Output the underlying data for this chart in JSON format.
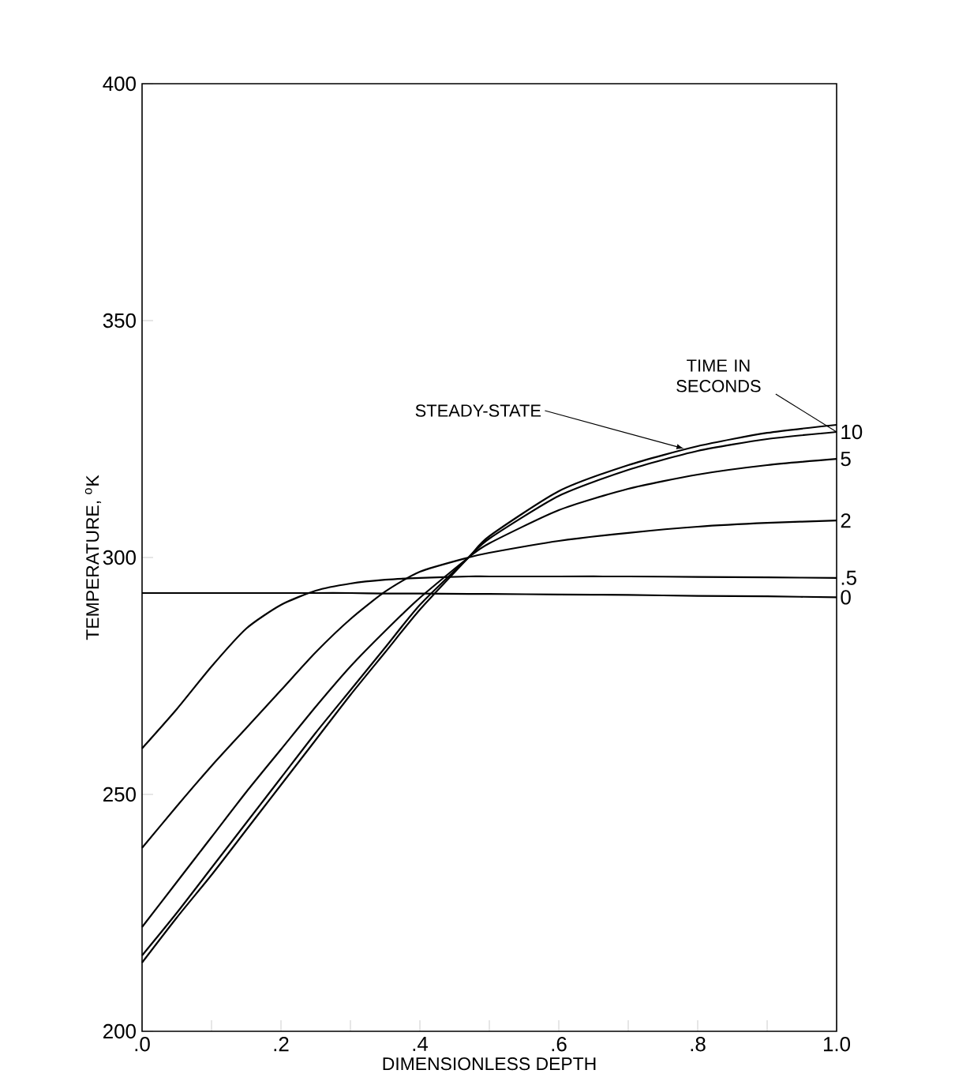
{
  "chart_data": {
    "type": "line",
    "xlabel": "DIMENSIONLESS DEPTH",
    "ylabel": "TEMPERATURE, $^{o}$K",
    "xlim": [
      0,
      1
    ],
    "ylim": [
      200,
      400
    ],
    "xticks": [
      {
        "value": 0,
        "label": ".0"
      },
      {
        "value": 0.1,
        "label": null
      },
      {
        "value": 0.2,
        "label": ".2"
      },
      {
        "value": 0.3,
        "label": null
      },
      {
        "value": 0.4,
        "label": ".4"
      },
      {
        "value": 0.5,
        "label": null
      },
      {
        "value": 0.6,
        "label": ".6"
      },
      {
        "value": 0.7,
        "label": null
      },
      {
        "value": 0.8,
        "label": ".8"
      },
      {
        "value": 0.9,
        "label": null
      },
      {
        "value": 1,
        "label": "1.0"
      }
    ],
    "yticks": [
      200,
      250,
      300,
      350,
      400
    ],
    "grid": false,
    "marker": "none",
    "line_style": "solid",
    "x": [
      0,
      0.05,
      0.1,
      0.15,
      0.2,
      0.25,
      0.3,
      0.35,
      0.4,
      0.47,
      0.5,
      0.6,
      0.7,
      0.8,
      0.9,
      1
    ],
    "series": [
      {
        "name": "0",
        "color": "#000000",
        "values": [
          292.5,
          292.5,
          292.5,
          292.5,
          292.5,
          292.5,
          292.5,
          292.4,
          292.4,
          292.3,
          292.3,
          292.2,
          292.1,
          291.9,
          291.8,
          291.6
        ]
      },
      {
        "name": ".5",
        "color": "#000000",
        "values": [
          259.7,
          268,
          277,
          285,
          290,
          293,
          294.5,
          295.3,
          295.7,
          296,
          296,
          296,
          296,
          295.9,
          295.8,
          295.7
        ]
      },
      {
        "name": "2",
        "color": "#000000",
        "values": [
          238.7,
          247.5,
          256,
          264,
          272,
          280,
          287,
          292.8,
          297,
          300,
          301,
          303.5,
          305.2,
          306.5,
          307.3,
          307.8
        ]
      },
      {
        "name": "5",
        "color": "#000000",
        "values": [
          222,
          231.5,
          241,
          250.5,
          259.5,
          268.5,
          277,
          284.5,
          291.5,
          300,
          303,
          310,
          314.5,
          317.5,
          319.5,
          320.8
        ]
      },
      {
        "name": "10",
        "color": "#000000",
        "values": [
          216,
          225,
          234.5,
          244,
          253.5,
          263,
          272,
          281,
          290,
          300,
          304,
          313,
          318.5,
          322.5,
          325,
          326.5
        ]
      },
      {
        "color": "#000000",
        "values": [
          214.5,
          224,
          233,
          242.5,
          252,
          261.5,
          271,
          280,
          289,
          300,
          304.5,
          314,
          319.5,
          323.5,
          326.3,
          328
        ]
      }
    ],
    "annotations": [
      {
        "text": "STEADY-STATE",
        "x": 0.78,
        "y": 323
      },
      {
        "text": "TIME IN SECONDS",
        "x": 1,
        "y": 326.5
      }
    ]
  }
}
